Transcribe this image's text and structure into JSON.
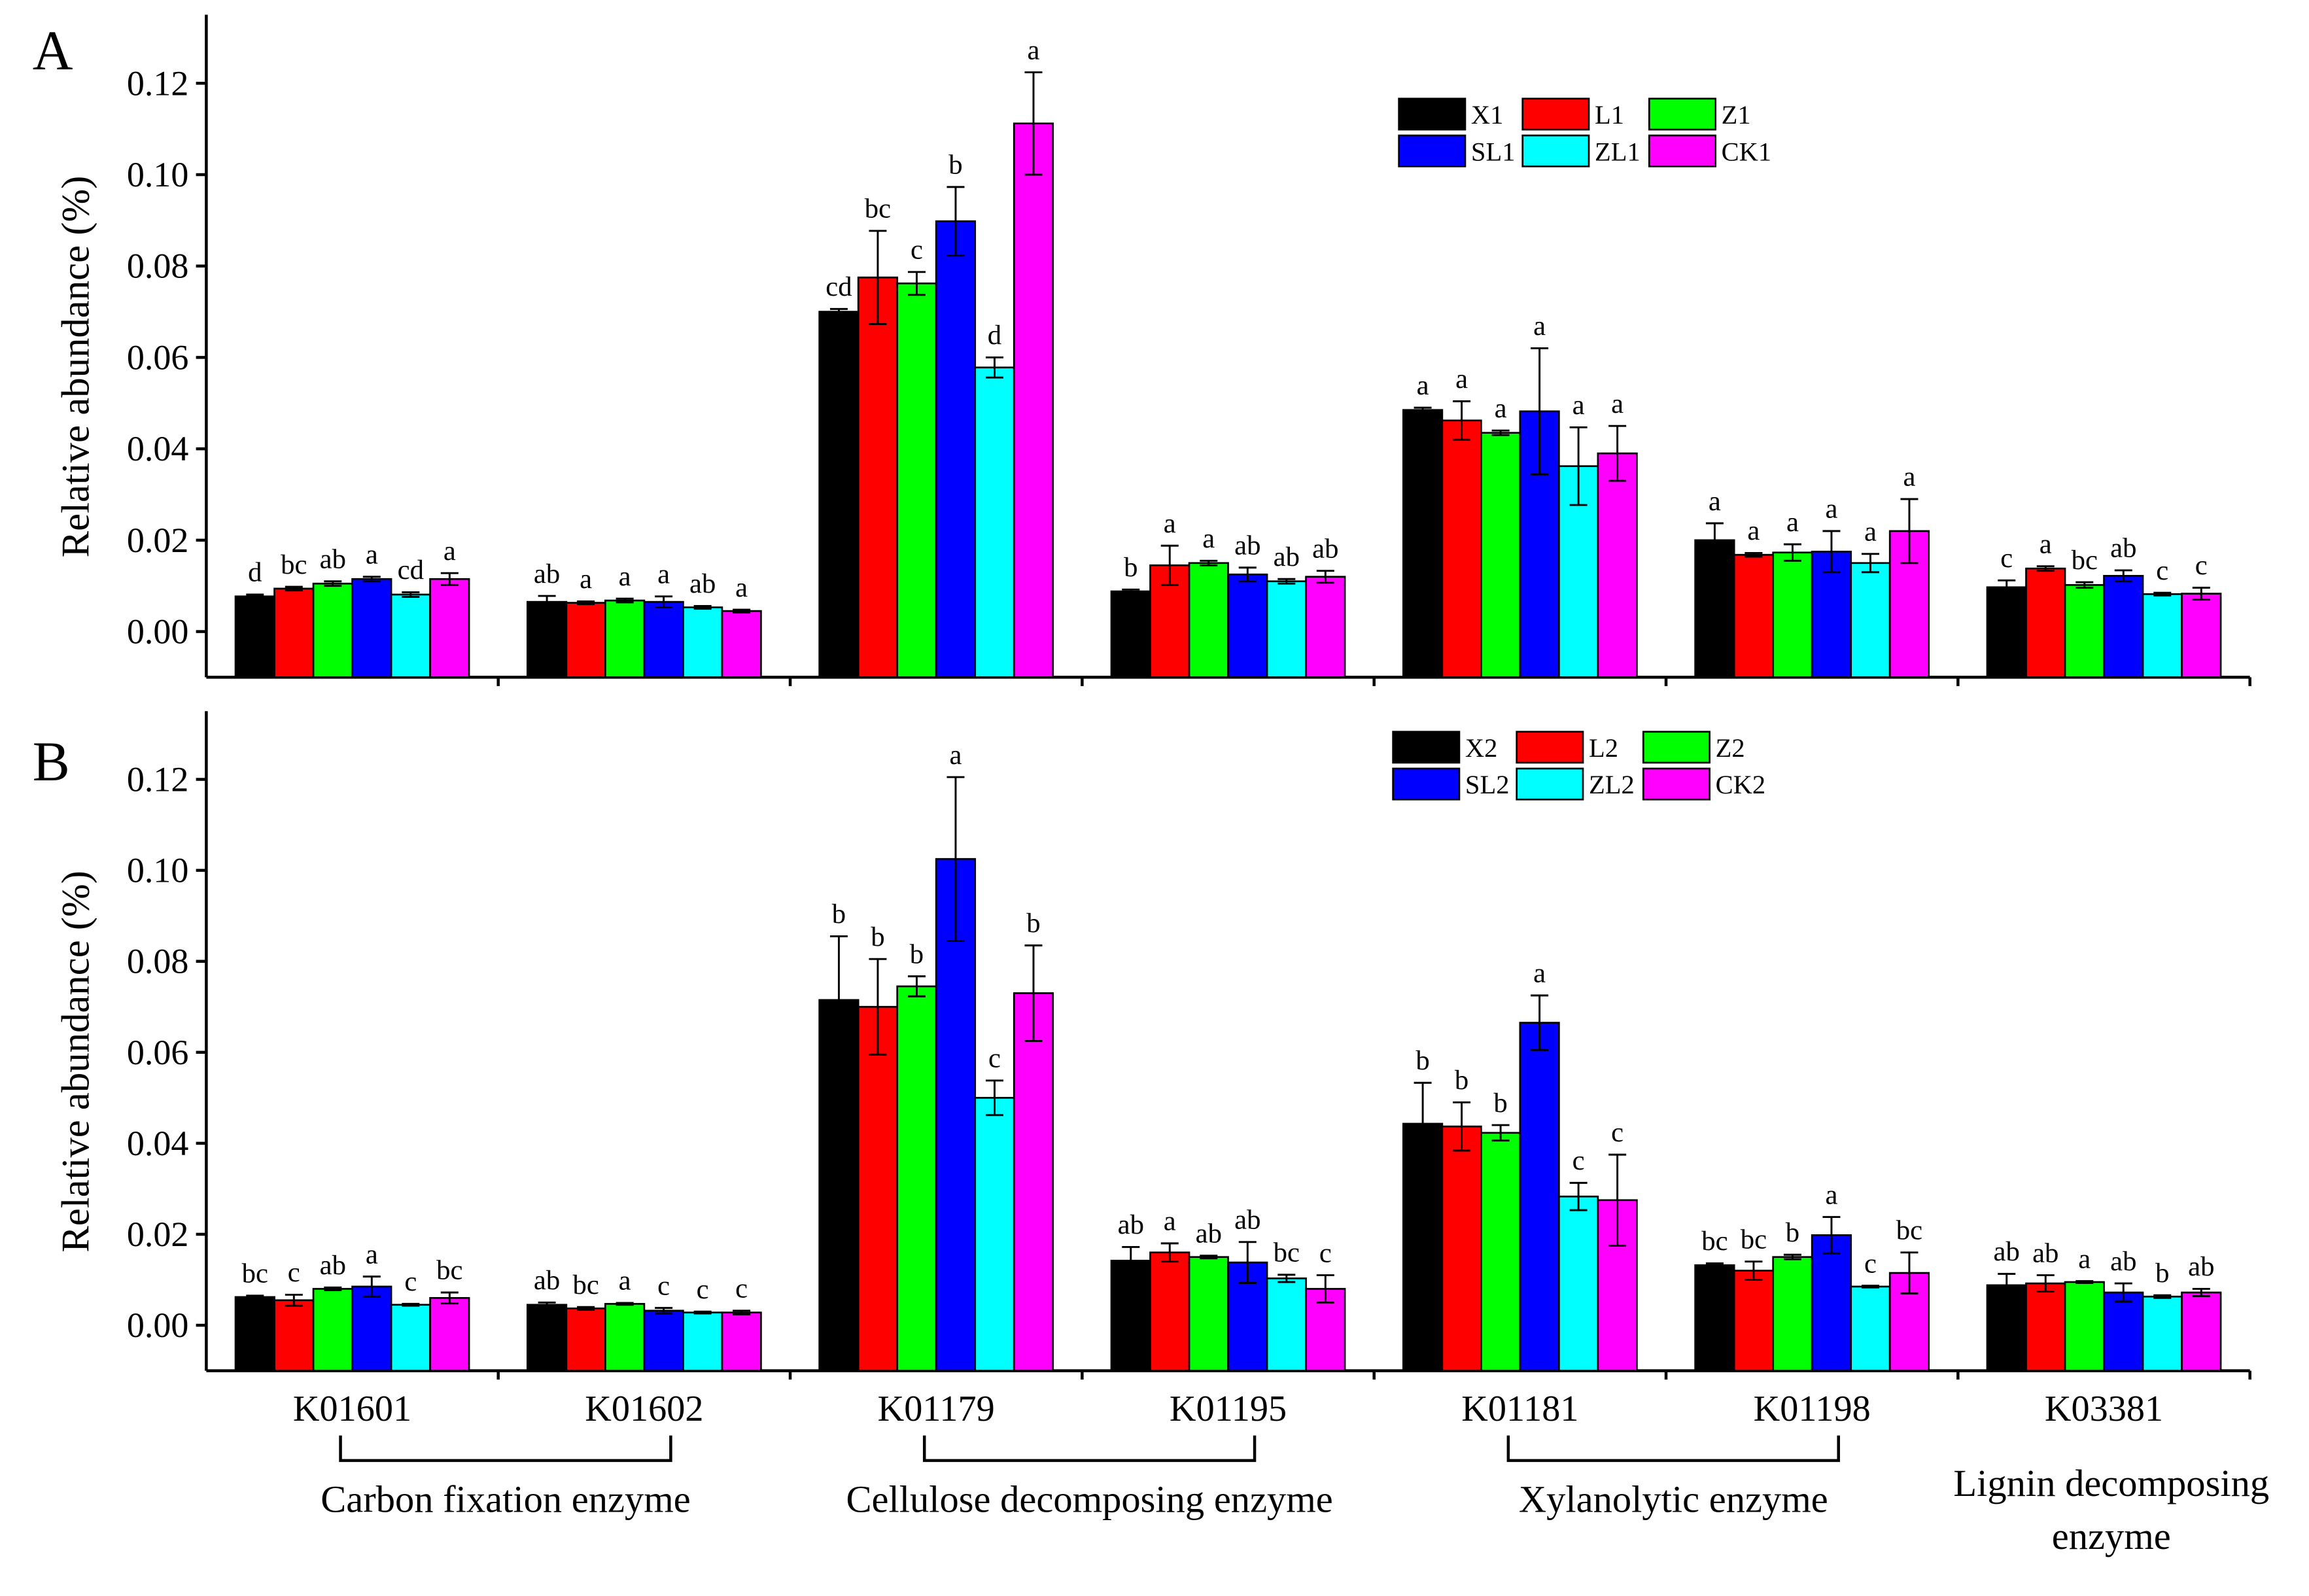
{
  "chart_data": {
    "type": "bar",
    "categories": [
      "K01601",
      "K01602",
      "K01179",
      "K01195",
      "K01181",
      "K01198",
      "K03381"
    ],
    "ylabel": "Relative abundance (%)",
    "ylim": [
      -0.01,
      0.135
    ],
    "yticks": [
      "0.00",
      "0.02",
      "0.04",
      "0.06",
      "0.08",
      "0.10",
      "0.12"
    ],
    "grid": false,
    "groups": [
      {
        "label": [
          "Carbon fixation enzyme"
        ],
        "span": [
          0,
          1
        ],
        "bracket": true
      },
      {
        "label": [
          "Cellulose decomposing enzyme"
        ],
        "span": [
          2,
          3
        ],
        "bracket": true
      },
      {
        "label": [
          "Xylanolytic enzyme"
        ],
        "span": [
          4,
          5
        ],
        "bracket": true
      },
      {
        "label": [
          "Lignin decomposing",
          "enzyme"
        ],
        "span": [
          6,
          6
        ],
        "bracket": false
      }
    ],
    "panels": [
      {
        "label": "A",
        "series": [
          {
            "name": "X1",
            "color": "#000000",
            "values": [
              0.0077,
              0.0065,
              0.07,
              0.0088,
              0.0485,
              0.02,
              0.0097
            ],
            "errors": [
              0.0004,
              0.0013,
              0.0006,
              0.0004,
              0.0005,
              0.0037,
              0.0015
            ],
            "letters": [
              "d",
              "ab",
              "cd",
              "b",
              "a",
              "a",
              "c"
            ]
          },
          {
            "name": "L1",
            "color": "#ff0000",
            "values": [
              0.0094,
              0.0063,
              0.0775,
              0.0145,
              0.0462,
              0.0168,
              0.0138
            ],
            "errors": [
              0.0004,
              0.0003,
              0.0102,
              0.0043,
              0.0042,
              0.0004,
              0.0005
            ],
            "letters": [
              "bc",
              "a",
              "bc",
              "a",
              "a",
              "a",
              "a"
            ]
          },
          {
            "name": "Z1",
            "color": "#00ff00",
            "values": [
              0.0105,
              0.0068,
              0.0762,
              0.015,
              0.0435,
              0.0173,
              0.0102
            ],
            "errors": [
              0.0005,
              0.0004,
              0.0025,
              0.0005,
              0.0005,
              0.0018,
              0.0006
            ],
            "letters": [
              "ab",
              "a",
              "c",
              "a",
              "a",
              "a",
              "bc"
            ]
          },
          {
            "name": "SL1",
            "color": "#0000ff",
            "values": [
              0.0115,
              0.0065,
              0.0898,
              0.0125,
              0.0482,
              0.0175,
              0.0122
            ],
            "errors": [
              0.0005,
              0.0012,
              0.0075,
              0.0015,
              0.0138,
              0.0045,
              0.0012
            ],
            "letters": [
              "a",
              "a",
              "b",
              "ab",
              "a",
              "a",
              "ab"
            ]
          },
          {
            "name": "ZL1",
            "color": "#00ffff",
            "values": [
              0.0081,
              0.0053,
              0.0578,
              0.011,
              0.0362,
              0.015,
              0.0082
            ],
            "errors": [
              0.0005,
              0.0003,
              0.0022,
              0.0005,
              0.0085,
              0.002,
              0.0003
            ],
            "letters": [
              "cd",
              "ab",
              "d",
              "ab",
              "a",
              "a",
              "c"
            ]
          },
          {
            "name": "CK1",
            "color": "#ff00ff",
            "values": [
              0.0115,
              0.0045,
              0.1112,
              0.012,
              0.039,
              0.022,
              0.0083
            ],
            "errors": [
              0.0013,
              0.0003,
              0.0112,
              0.0013,
              0.006,
              0.007,
              0.0013
            ],
            "letters": [
              "a",
              "a",
              "a",
              "ab",
              "a",
              "a",
              "c"
            ]
          }
        ]
      },
      {
        "label": "B",
        "series": [
          {
            "name": "X2",
            "color": "#000000",
            "values": [
              0.0062,
              0.0045,
              0.0715,
              0.0142,
              0.0443,
              0.0132,
              0.0088
            ],
            "errors": [
              0.0003,
              0.0005,
              0.014,
              0.003,
              0.009,
              0.0004,
              0.0025
            ],
            "letters": [
              "bc",
              "ab",
              "b",
              "ab",
              "b",
              "bc",
              "ab"
            ]
          },
          {
            "name": "L2",
            "color": "#ff0000",
            "values": [
              0.0055,
              0.0037,
              0.07,
              0.016,
              0.0437,
              0.012,
              0.0092
            ],
            "errors": [
              0.0012,
              0.0003,
              0.0105,
              0.002,
              0.0053,
              0.002,
              0.0018
            ],
            "letters": [
              "c",
              "bc",
              "b",
              "a",
              "b",
              "bc",
              "ab"
            ]
          },
          {
            "name": "Z2",
            "color": "#00ff00",
            "values": [
              0.008,
              0.0047,
              0.0745,
              0.015,
              0.0423,
              0.015,
              0.0095
            ],
            "errors": [
              0.0003,
              0.0002,
              0.0022,
              0.0003,
              0.0017,
              0.0005,
              0.0002
            ],
            "letters": [
              "ab",
              "a",
              "b",
              "ab",
              "b",
              "b",
              "a"
            ]
          },
          {
            "name": "SL2",
            "color": "#0000ff",
            "values": [
              0.0085,
              0.0032,
              0.1025,
              0.0138,
              0.0665,
              0.0198,
              0.0072
            ],
            "errors": [
              0.0022,
              0.0006,
              0.018,
              0.0045,
              0.006,
              0.004,
              0.002
            ],
            "letters": [
              "a",
              "c",
              "a",
              "ab",
              "a",
              "a",
              "ab"
            ]
          },
          {
            "name": "ZL2",
            "color": "#00ffff",
            "values": [
              0.0045,
              0.0028,
              0.05,
              0.0103,
              0.0283,
              0.0085,
              0.0063
            ],
            "errors": [
              0.0002,
              0.0002,
              0.0038,
              0.0008,
              0.003,
              0.0002,
              0.0003
            ],
            "letters": [
              "c",
              "c",
              "c",
              "bc",
              "c",
              "c",
              "b"
            ]
          },
          {
            "name": "CK2",
            "color": "#ff00ff",
            "values": [
              0.006,
              0.0028,
              0.073,
              0.008,
              0.0275,
              0.0115,
              0.0072
            ],
            "errors": [
              0.0012,
              0.0004,
              0.0105,
              0.003,
              0.01,
              0.0045,
              0.0008
            ],
            "letters": [
              "bc",
              "c",
              "b",
              "c",
              "c",
              "bc",
              "ab"
            ]
          }
        ]
      }
    ]
  }
}
